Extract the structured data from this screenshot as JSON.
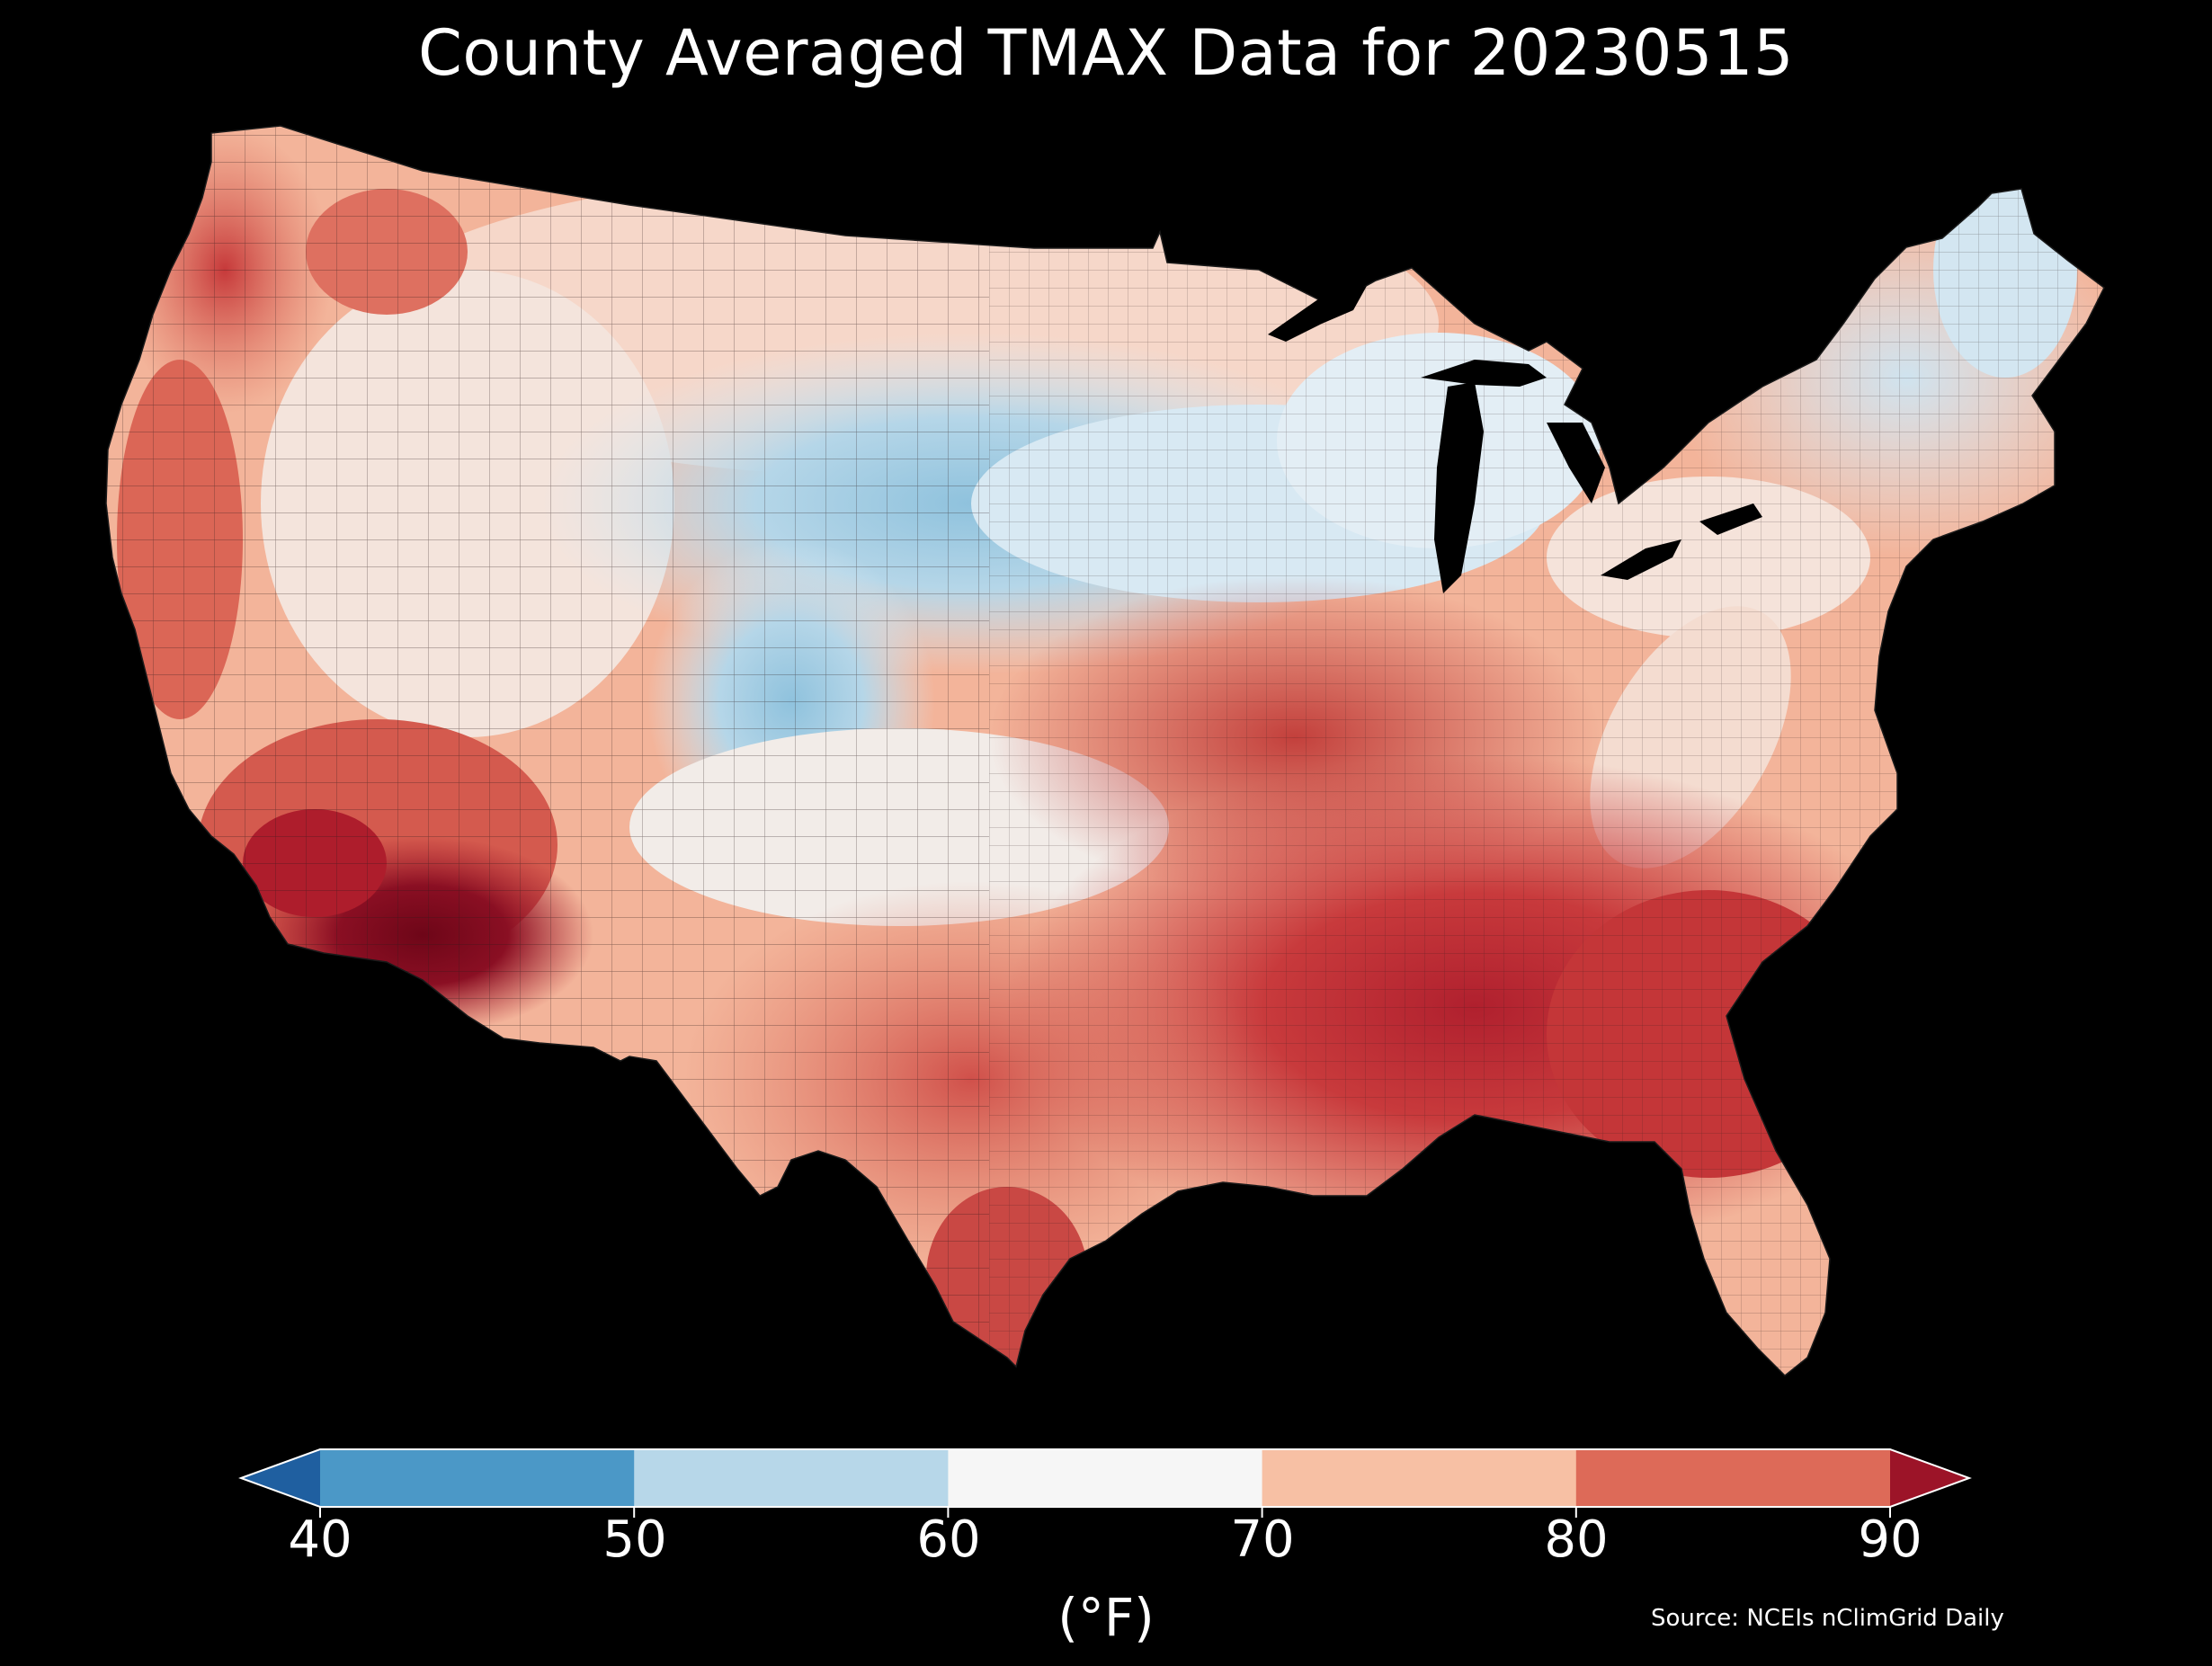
{
  "title": "County Averaged TMAX Data for 20230515",
  "colorbar": {
    "unit_label": "(°F)",
    "ticks": [
      "40",
      "50",
      "60",
      "70",
      "80",
      "90"
    ],
    "bins": [
      {
        "range": "<40",
        "color": "#1f5fa0"
      },
      {
        "range": "40-50",
        "color": "#4b98c7"
      },
      {
        "range": "50-60",
        "color": "#b7d7e9"
      },
      {
        "range": "60-70",
        "color": "#f6f6f6"
      },
      {
        "range": "70-80",
        "color": "#f7c0a4"
      },
      {
        "range": "80-90",
        "color": "#dd6a58"
      },
      {
        "range": ">90",
        "color": "#9c1428"
      }
    ],
    "extend": "both"
  },
  "source": "Source: NCEIs nClimGrid Daily",
  "map": {
    "type": "choropleth",
    "region": "Contiguous United States, county level",
    "background": "#000000",
    "palette": "RdBu_r diverging"
  }
}
